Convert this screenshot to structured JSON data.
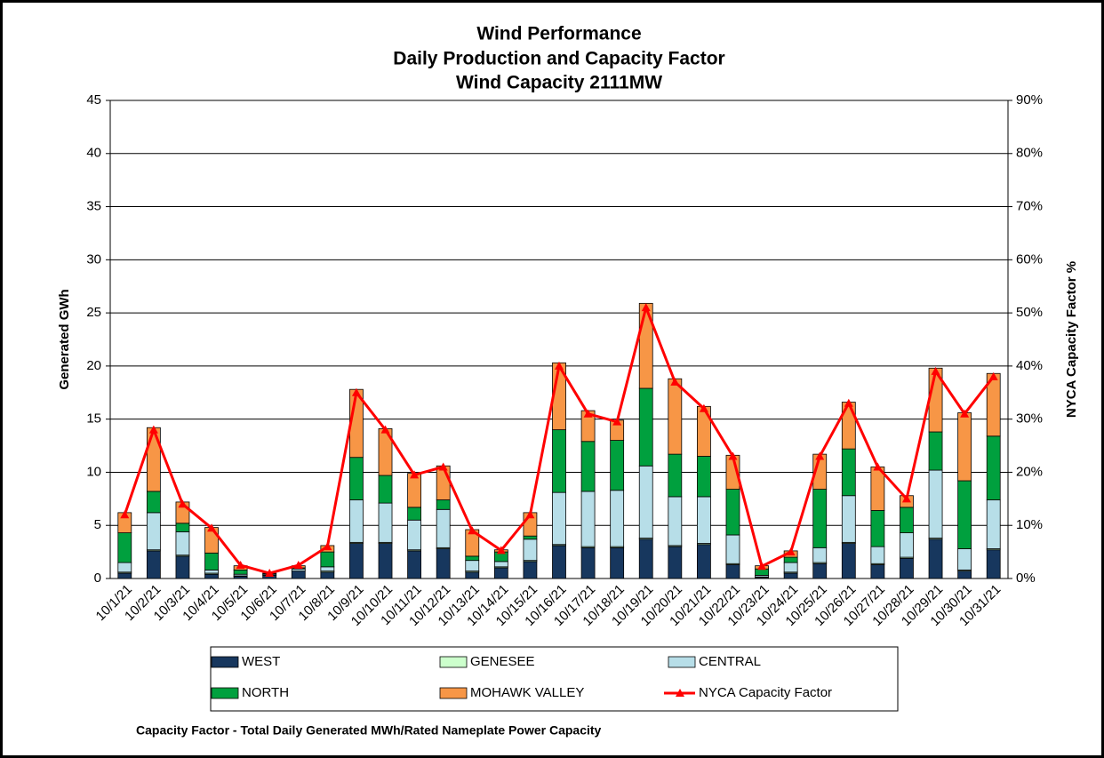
{
  "chart_data": {
    "type": "bar",
    "title_lines": [
      "Wind Performance",
      "Daily Production and Capacity Factor",
      "Wind Capacity 2111MW"
    ],
    "y_label": "Generated GWh",
    "y2_label": "NYCA  Capacity Factor %",
    "footnote": "Capacity Factor  - Total Daily Generated MWh/Rated Nameplate Power Capacity",
    "stacked": true,
    "categories": [
      "10/1/21",
      "10/2/21",
      "10/3/21",
      "10/4/21",
      "10/5/21",
      "10/6/21",
      "10/7/21",
      "10/8/21",
      "10/9/21",
      "10/10/21",
      "10/11/21",
      "10/12/21",
      "10/13/21",
      "10/14/21",
      "10/15/21",
      "10/16/21",
      "10/17/21",
      "10/18/21",
      "10/19/21",
      "10/20/21",
      "10/21/21",
      "10/22/21",
      "10/23/21",
      "10/24/21",
      "10/25/21",
      "10/26/21",
      "10/27/21",
      "10/28/21",
      "10/29/21",
      "10/30/21",
      "10/31/21"
    ],
    "series": [
      {
        "name": "WEST",
        "color": "#17375e",
        "values": [
          0.5,
          2.6,
          2.1,
          0.4,
          0.2,
          0.3,
          0.7,
          0.6,
          3.3,
          3.3,
          2.6,
          2.8,
          0.6,
          1.0,
          1.6,
          3.1,
          2.9,
          2.9,
          3.7,
          3.0,
          3.2,
          1.3,
          0.1,
          0.5,
          1.4,
          3.3,
          1.3,
          1.9,
          3.7,
          0.7,
          2.7
        ]
      },
      {
        "name": "GENESEE",
        "color": "#ccffcc",
        "values": [
          0.1,
          0.1,
          0.1,
          0.1,
          0.05,
          0,
          0,
          0.1,
          0.1,
          0.1,
          0.1,
          0.1,
          0.1,
          0.1,
          0.1,
          0.1,
          0.1,
          0.1,
          0.1,
          0.1,
          0.1,
          0.1,
          0.05,
          0.1,
          0.1,
          0.1,
          0.1,
          0.1,
          0.1,
          0.1,
          0.1
        ]
      },
      {
        "name": "CENTRAL",
        "color": "#b7dee8",
        "values": [
          0.9,
          3.5,
          2.2,
          0.3,
          0.15,
          0.1,
          0.2,
          0.4,
          4.0,
          3.7,
          2.8,
          3.6,
          1.0,
          0.5,
          2.0,
          4.9,
          5.2,
          5.3,
          6.8,
          4.6,
          4.4,
          2.7,
          0.15,
          0.9,
          1.4,
          4.4,
          1.6,
          2.3,
          6.4,
          2.0,
          4.6
        ]
      },
      {
        "name": "NORTH",
        "color": "#00a03e",
        "values": [
          2.8,
          2.0,
          0.8,
          1.6,
          0.4,
          0.05,
          0.1,
          1.4,
          4.0,
          2.6,
          1.2,
          0.9,
          0.4,
          0.9,
          0.3,
          5.9,
          4.7,
          4.7,
          7.3,
          4.0,
          3.8,
          4.3,
          0.6,
          0.5,
          5.5,
          4.4,
          3.4,
          2.4,
          3.6,
          6.4,
          6.0
        ]
      },
      {
        "name": "MOHAWK VALLEY",
        "color": "#f79646",
        "values": [
          1.9,
          6.0,
          2.0,
          2.4,
          0.4,
          0.05,
          0.2,
          0.6,
          6.4,
          4.4,
          3.2,
          3.2,
          2.5,
          0.2,
          2.2,
          6.3,
          2.9,
          1.9,
          8.0,
          7.1,
          4.7,
          3.2,
          0.3,
          0.6,
          3.3,
          4.4,
          4.1,
          1.1,
          6.0,
          6.4,
          5.9
        ]
      },
      {
        "name": "NYCA Capacity Factor",
        "color": "#ff0000",
        "type": "line",
        "axis": "y2",
        "values": [
          12,
          28,
          14,
          9.5,
          2.5,
          1,
          2.5,
          6,
          35,
          28,
          19.5,
          21,
          9,
          5.3,
          12,
          40,
          31,
          29.5,
          51,
          37,
          32,
          23,
          2.3,
          5,
          23,
          33,
          21,
          15,
          39,
          31,
          38
        ]
      }
    ],
    "ylim": [
      0,
      45
    ],
    "yticks": [
      0,
      5,
      10,
      15,
      20,
      25,
      30,
      35,
      40,
      45
    ],
    "y2lim": [
      0,
      90
    ],
    "y2ticks": [
      {
        "value": 0,
        "label": "0%"
      },
      {
        "value": 10,
        "label": "10%"
      },
      {
        "value": 20,
        "label": "20%"
      },
      {
        "value": 30,
        "label": "30%"
      },
      {
        "value": 40,
        "label": "40%"
      },
      {
        "value": 50,
        "label": "50%"
      },
      {
        "value": 60,
        "label": "60%"
      },
      {
        "value": 70,
        "label": "70%"
      },
      {
        "value": 80,
        "label": "80%"
      },
      {
        "value": 90,
        "label": "90%"
      }
    ],
    "grid": true
  }
}
